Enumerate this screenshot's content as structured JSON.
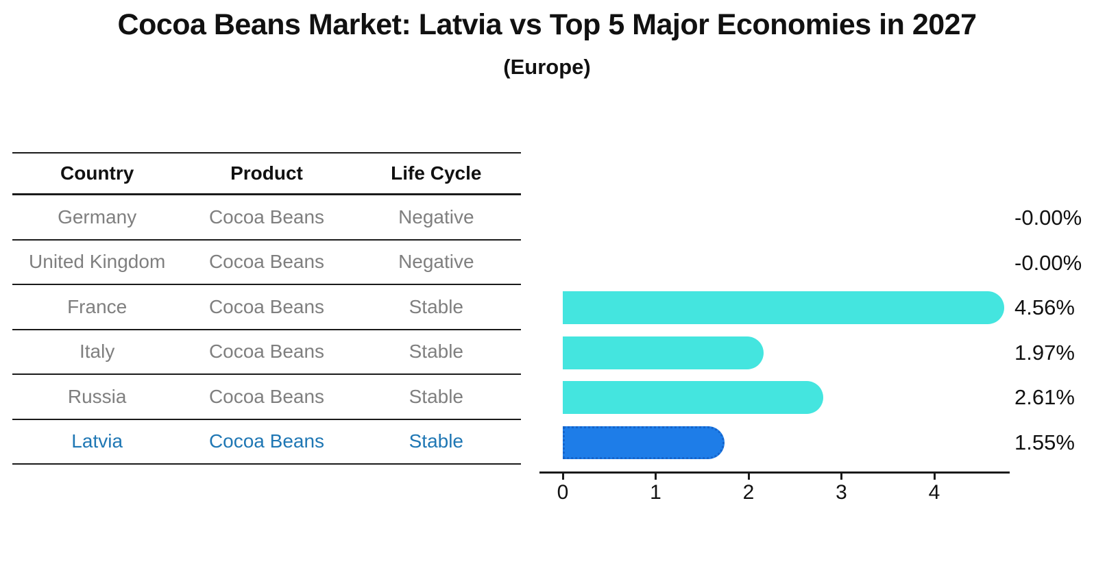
{
  "title": "Cocoa Beans Market: Latvia vs Top 5 Major Economies in 2027",
  "subtitle": "(Europe)",
  "table": {
    "headers": [
      "Country",
      "Product",
      "Life Cycle"
    ],
    "rows": [
      {
        "country": "Germany",
        "product": "Cocoa Beans",
        "life_cycle": "Negative"
      },
      {
        "country": "United Kingdom",
        "product": "Cocoa Beans",
        "life_cycle": "Negative"
      },
      {
        "country": "France",
        "product": "Cocoa Beans",
        "life_cycle": "Stable"
      },
      {
        "country": "Italy",
        "product": "Cocoa Beans",
        "life_cycle": "Stable"
      },
      {
        "country": "Russia",
        "product": "Cocoa Beans",
        "life_cycle": "Stable"
      },
      {
        "country": "Latvia",
        "product": "Cocoa Beans",
        "life_cycle": "Stable"
      }
    ],
    "highlight_row": 5
  },
  "chart_data": {
    "type": "bar",
    "orientation": "horizontal",
    "title": "Cocoa Beans Market: Latvia vs Top 5 Major Economies in 2027 (Europe)",
    "categories": [
      "Germany",
      "United Kingdom",
      "France",
      "Italy",
      "Russia",
      "Latvia"
    ],
    "values": [
      -0.0,
      -0.0,
      4.56,
      1.97,
      2.61,
      1.55
    ],
    "labels": [
      "-0.00%",
      "-0.00%",
      "4.56%",
      "1.97%",
      "2.61%",
      "1.55%"
    ],
    "xticks": [
      "0",
      "1",
      "2",
      "3",
      "4"
    ],
    "xlim": [
      0,
      4.8
    ],
    "grid": false,
    "legend": "none",
    "highlight_index": 5,
    "bar_color": "#44E5DF",
    "highlight_bar_color": "#1E7DE8",
    "highlight_border_color": "#1564CB"
  },
  "colors": {
    "background": "#ffffff",
    "text_primary": "#111111",
    "text_muted": "#7f7f7f",
    "highlight_text": "#1f77b4",
    "line": "#1a1a1a"
  }
}
